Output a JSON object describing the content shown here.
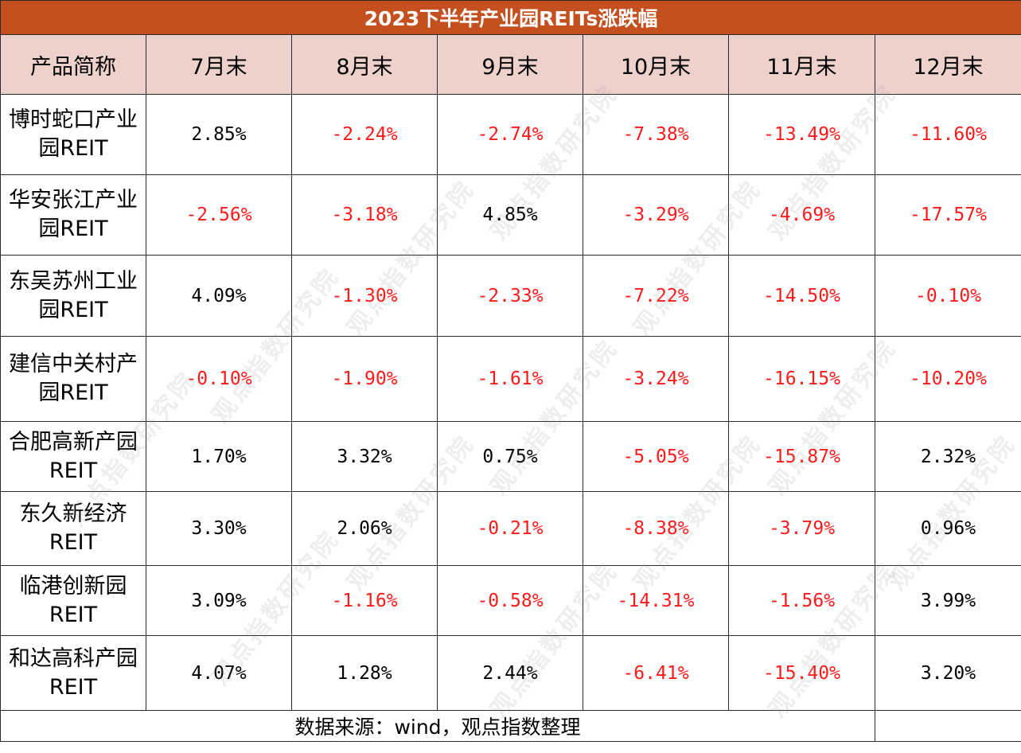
{
  "table": {
    "title": "2023下半年产业园REITs涨跌幅",
    "headers": [
      "产品简称",
      "7月末",
      "8月末",
      "9月末",
      "10月末",
      "11月末",
      "12月末"
    ],
    "rows": [
      {
        "name_line1": "博时蛇口产业",
        "name_line2": "园REIT",
        "values": [
          "2.85%",
          "-2.24%",
          "-2.74%",
          "-7.38%",
          "-13.49%",
          "-11.60%"
        ]
      },
      {
        "name_line1": "华安张江产业",
        "name_line2": "园REIT",
        "values": [
          "-2.56%",
          "-3.18%",
          "4.85%",
          "-3.29%",
          "-4.69%",
          "-17.57%"
        ]
      },
      {
        "name_line1": "东吴苏州工业",
        "name_line2": "园REIT",
        "values": [
          "4.09%",
          "-1.30%",
          "-2.33%",
          "-7.22%",
          "-14.50%",
          "-0.10%"
        ]
      },
      {
        "name_line1": "建信中关村产",
        "name_line2": "园REIT",
        "values": [
          "-0.10%",
          "-1.90%",
          "-1.61%",
          "-3.24%",
          "-16.15%",
          "-10.20%"
        ]
      },
      {
        "name_line1": "合肥高新产园",
        "name_line2": "REIT",
        "values": [
          "1.70%",
          "3.32%",
          "0.75%",
          "-5.05%",
          "-15.87%",
          "2.32%"
        ]
      },
      {
        "name_line1": "东久新经济",
        "name_line2": "REIT",
        "values": [
          "3.30%",
          "2.06%",
          "-0.21%",
          "-8.38%",
          "-3.79%",
          "0.96%"
        ]
      },
      {
        "name_line1": "临港创新园",
        "name_line2": "REIT",
        "values": [
          "3.09%",
          "-1.16%",
          "-0.58%",
          "-14.31%",
          "-1.56%",
          "3.99%"
        ]
      },
      {
        "name_line1": "和达高科产园",
        "name_line2": "REIT",
        "values": [
          "4.07%",
          "1.28%",
          "2.44%",
          "-6.41%",
          "-15.40%",
          "3.20%"
        ]
      }
    ],
    "source": "数据来源：wind，观点指数整理"
  },
  "watermark": "观点指数研究院",
  "colors": {
    "title_bg": "#c5501f",
    "header_bg": "#efd1cc",
    "negative_text": "#ff1a1a",
    "positive_text": "#000000"
  }
}
